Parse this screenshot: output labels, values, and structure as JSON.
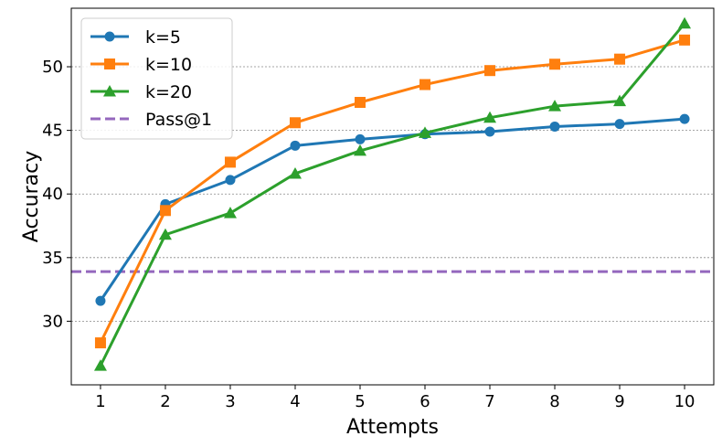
{
  "chart_data": {
    "type": "line",
    "title": "",
    "xlabel": "Attempts",
    "ylabel": "Accuracy",
    "x": [
      1,
      2,
      3,
      4,
      5,
      6,
      7,
      8,
      9,
      10
    ],
    "xlim": [
      0.55,
      10.45
    ],
    "ylim": [
      25.0,
      54.6
    ],
    "yticks": [
      30,
      35,
      40,
      45,
      50
    ],
    "grid": "horizontal dotted",
    "legend_position": "top-left",
    "series": [
      {
        "name": "k=5",
        "color": "#1f77b4",
        "marker": "circle",
        "values": [
          31.6,
          39.2,
          41.1,
          43.8,
          44.3,
          44.7,
          44.9,
          45.3,
          45.5,
          45.9
        ]
      },
      {
        "name": "k=10",
        "color": "#ff7f0e",
        "marker": "square",
        "values": [
          28.3,
          38.7,
          42.5,
          45.6,
          47.2,
          48.6,
          49.7,
          50.2,
          50.6,
          52.1
        ]
      },
      {
        "name": "k=20",
        "color": "#2ca02c",
        "marker": "triangle",
        "values": [
          26.5,
          36.8,
          38.5,
          41.6,
          43.4,
          44.8,
          46.0,
          46.9,
          47.3,
          53.4
        ]
      }
    ],
    "reference_lines": [
      {
        "name": "Pass@1",
        "color": "#9467bd",
        "style": "dashed",
        "value": 33.9
      }
    ]
  }
}
